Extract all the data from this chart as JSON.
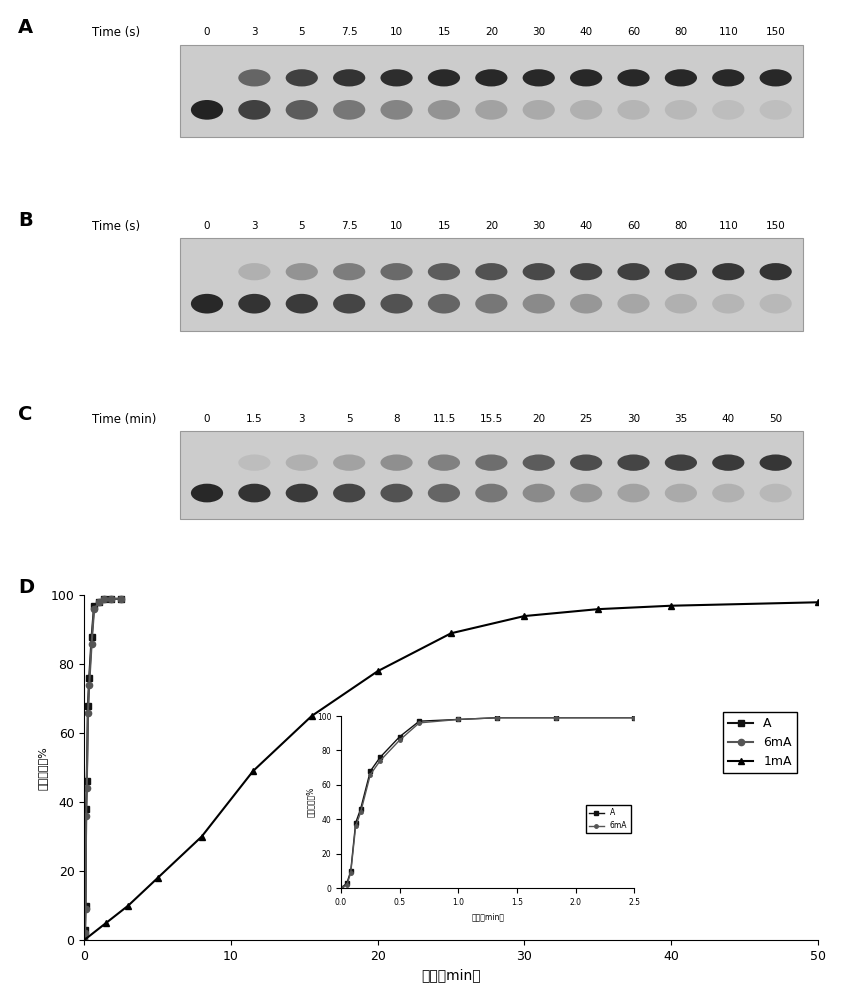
{
  "panel_A": {
    "label": "A",
    "time_label": "Time (s)",
    "times": [
      "0",
      "3",
      "5",
      "7.5",
      "10",
      "15",
      "20",
      "30",
      "40",
      "60",
      "80",
      "110",
      "150"
    ],
    "upper_alpha": [
      0.0,
      0.55,
      0.75,
      0.82,
      0.85,
      0.87,
      0.88,
      0.88,
      0.88,
      0.88,
      0.88,
      0.88,
      0.88
    ],
    "lower_alpha": [
      0.9,
      0.75,
      0.6,
      0.45,
      0.38,
      0.3,
      0.22,
      0.18,
      0.15,
      0.12,
      0.1,
      0.08,
      0.07
    ]
  },
  "panel_B": {
    "label": "B",
    "time_label": "Time (s)",
    "times": [
      "0",
      "3",
      "5",
      "7.5",
      "10",
      "15",
      "20",
      "30",
      "40",
      "60",
      "80",
      "110",
      "150"
    ],
    "upper_alpha": [
      0.0,
      0.15,
      0.3,
      0.42,
      0.52,
      0.6,
      0.65,
      0.7,
      0.73,
      0.75,
      0.77,
      0.8,
      0.82
    ],
    "lower_alpha": [
      0.88,
      0.82,
      0.78,
      0.72,
      0.65,
      0.55,
      0.45,
      0.35,
      0.28,
      0.2,
      0.15,
      0.12,
      0.1
    ]
  },
  "panel_C": {
    "label": "C",
    "time_label": "Time (min)",
    "times": [
      "0",
      "1.5",
      "3",
      "5",
      "8",
      "11.5",
      "15.5",
      "20",
      "25",
      "30",
      "35",
      "40",
      "50"
    ],
    "upper_alpha": [
      0.0,
      0.08,
      0.15,
      0.22,
      0.32,
      0.4,
      0.5,
      0.6,
      0.68,
      0.72,
      0.75,
      0.78,
      0.8
    ],
    "lower_alpha": [
      0.88,
      0.82,
      0.78,
      0.72,
      0.65,
      0.55,
      0.45,
      0.35,
      0.28,
      0.22,
      0.18,
      0.14,
      0.1
    ]
  },
  "panel_D": {
    "label": "D",
    "xlabel": "时间（min）",
    "ylabel": "转化百分比%",
    "xlim": [
      0,
      50
    ],
    "ylim": [
      0,
      100
    ],
    "xticks": [
      0,
      10,
      20,
      30,
      40,
      50
    ],
    "yticks": [
      0,
      20,
      40,
      60,
      80,
      100
    ],
    "series_A": {
      "label": "A",
      "x": [
        0,
        0.05,
        0.083,
        0.125,
        0.167,
        0.25,
        0.333,
        0.5,
        0.667,
        1.0,
        1.333,
        1.833,
        2.5
      ],
      "y": [
        0,
        3,
        10,
        38,
        46,
        68,
        76,
        88,
        97,
        98,
        99,
        99,
        99
      ],
      "marker": "s",
      "color": "#111111",
      "linewidth": 1.5
    },
    "series_6mA": {
      "label": "6mA",
      "x": [
        0,
        0.05,
        0.083,
        0.125,
        0.167,
        0.25,
        0.333,
        0.5,
        0.667,
        1.0,
        1.333,
        1.833,
        2.5
      ],
      "y": [
        0,
        2,
        9,
        36,
        44,
        66,
        74,
        86,
        96,
        98,
        99,
        99,
        99
      ],
      "marker": "o",
      "color": "#555555",
      "linewidth": 1.5
    },
    "series_1mA": {
      "label": "1mA",
      "x": [
        0,
        1.5,
        3,
        5,
        8,
        11.5,
        15.5,
        20,
        25,
        30,
        35,
        40,
        50
      ],
      "y": [
        0,
        5,
        10,
        18,
        30,
        49,
        65,
        78,
        89,
        94,
        96,
        97,
        98
      ],
      "marker": "^",
      "color": "#000000",
      "linewidth": 1.5
    },
    "inset": {
      "xlim": [
        0,
        2.5
      ],
      "ylim": [
        0,
        100
      ],
      "xlabel": "时间（min）",
      "ylabel": "转化百分比%",
      "xticks": [
        0.0,
        0.5,
        1.0,
        1.5,
        2.0,
        2.5
      ],
      "yticks": [
        0,
        20,
        40,
        60,
        80,
        100
      ]
    }
  }
}
